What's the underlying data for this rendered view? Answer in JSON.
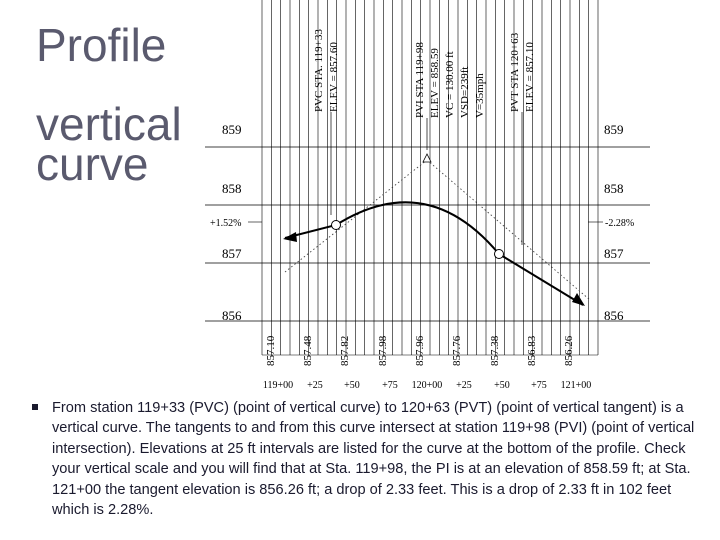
{
  "title": {
    "line1": "Profile",
    "line2a": "vertical",
    "line2b": "curve"
  },
  "elevation_labels": {
    "e859": "859",
    "e858": "858",
    "e857": "857",
    "e856": "856"
  },
  "grades": {
    "left": "+1.52%",
    "right": "-2.28%"
  },
  "stations": {
    "pvc": {
      "line1": "PVC  STA. 119+33",
      "line2": "ELEV = 857.60"
    },
    "pvi": {
      "line1": "PVI  STA 119+98",
      "line2": "ELEV = 858.59",
      "line3": "VC = 130.00 ft",
      "line4": "VSD=239ft",
      "line5": "V=35mph"
    },
    "pvt": {
      "line1": "PVT  STA 120+63",
      "line2": "ELEV = 857.10"
    }
  },
  "curve_elevations": [
    "857.10",
    "857.48",
    "857.82",
    "857.98",
    "857.96",
    "857.76",
    "857.38",
    "856.83",
    "856.26"
  ],
  "station_ticks": [
    "119+00",
    "+25",
    "+50",
    "+75",
    "120+00",
    "+25",
    "+50",
    "+75",
    "121+00"
  ],
  "bullet_text": "From station 119+33 (PVC) (point of vertical curve) to 120+63 (PVT) (point of vertical tangent) is a vertical curve.  The tangents to and from this curve intersect at station 119+98 (PVI) (point of vertical intersection).  Elevations at 25 ft intervals are listed for the curve at the bottom of the profile.  Check your vertical scale and you will find that at Sta. 119+98, the PI is at an elevation of 858.59 ft; at Sta. 121+00 the tangent elevation is 856.26 ft; a drop of 2.33 feet.  This is a drop of 2.33 ft in 102 feet which is 2.28%."
}
